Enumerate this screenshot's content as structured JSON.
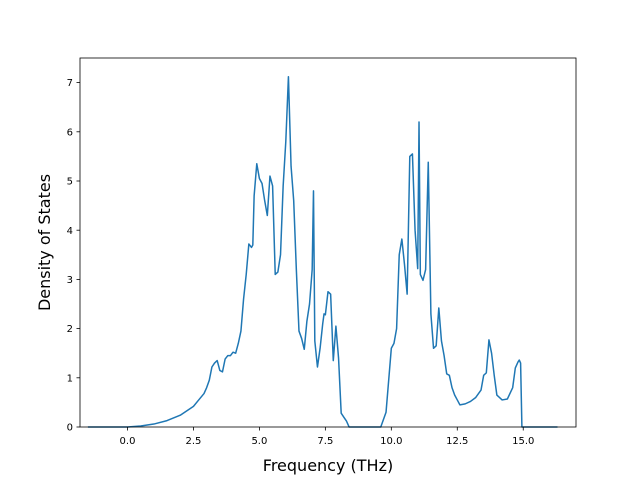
{
  "chart_data": {
    "type": "line",
    "title": "",
    "xlabel": "Frequency (THz)",
    "ylabel": "Density of States",
    "xlim": [
      -1.8,
      17.0
    ],
    "ylim": [
      0,
      7.5
    ],
    "xticks": [
      0.0,
      2.5,
      5.0,
      7.5,
      10.0,
      12.5,
      15.0
    ],
    "xtick_labels": [
      "0.0",
      "2.5",
      "5.0",
      "7.5",
      "10.0",
      "12.5",
      "15.0"
    ],
    "yticks": [
      0,
      1,
      2,
      3,
      4,
      5,
      6,
      7
    ],
    "ytick_labels": [
      "0",
      "1",
      "2",
      "3",
      "4",
      "5",
      "6",
      "7"
    ],
    "grid": false,
    "legend": "none",
    "series": [
      {
        "color": "#1f77b4",
        "x": [
          -1.5,
          -0.5,
          0.0,
          0.5,
          1.0,
          1.5,
          2.0,
          2.5,
          2.7,
          2.9,
          3.0,
          3.1,
          3.2,
          3.3,
          3.4,
          3.5,
          3.6,
          3.7,
          3.8,
          3.9,
          4.0,
          4.1,
          4.2,
          4.3,
          4.4,
          4.5,
          4.6,
          4.7,
          4.75,
          4.8,
          4.9,
          4.95,
          5.0,
          5.1,
          5.2,
          5.3,
          5.4,
          5.5,
          5.6,
          5.7,
          5.8,
          5.9,
          6.0,
          6.1,
          6.2,
          6.3,
          6.4,
          6.5,
          6.6,
          6.7,
          6.8,
          6.9,
          7.0,
          7.05,
          7.1,
          7.2,
          7.3,
          7.4,
          7.45,
          7.5,
          7.6,
          7.7,
          7.8,
          7.9,
          8.0,
          8.1,
          8.2,
          8.3,
          8.4,
          9.6,
          9.8,
          9.9,
          10.0,
          10.1,
          10.2,
          10.3,
          10.4,
          10.5,
          10.6,
          10.7,
          10.8,
          10.9,
          11.0,
          11.05,
          11.1,
          11.2,
          11.3,
          11.4,
          11.5,
          11.6,
          11.7,
          11.8,
          11.9,
          12.0,
          12.1,
          12.2,
          12.3,
          12.4,
          12.5,
          12.6,
          12.8,
          13.0,
          13.2,
          13.4,
          13.5,
          13.6,
          13.7,
          13.8,
          13.9,
          14.0,
          14.2,
          14.4,
          14.6,
          14.7,
          14.8,
          14.85,
          14.9,
          14.95,
          15.0,
          16.3
        ],
        "y": [
          0,
          0,
          0,
          0.02,
          0.06,
          0.13,
          0.24,
          0.42,
          0.55,
          0.68,
          0.8,
          0.95,
          1.22,
          1.3,
          1.35,
          1.15,
          1.12,
          1.38,
          1.45,
          1.45,
          1.52,
          1.5,
          1.7,
          1.95,
          2.6,
          3.1,
          3.72,
          3.65,
          3.7,
          4.7,
          5.35,
          5.2,
          5.05,
          4.95,
          4.6,
          4.3,
          5.1,
          4.9,
          3.1,
          3.15,
          3.5,
          4.9,
          5.8,
          7.12,
          5.3,
          4.6,
          3.2,
          1.95,
          1.8,
          1.58,
          2.15,
          2.5,
          3.2,
          4.8,
          1.75,
          1.22,
          1.6,
          2.1,
          2.3,
          2.28,
          2.75,
          2.7,
          1.35,
          2.05,
          1.4,
          0.28,
          0.2,
          0.12,
          0.0,
          0.0,
          0.3,
          0.95,
          1.6,
          1.7,
          2.0,
          3.5,
          3.82,
          3.3,
          2.7,
          5.5,
          5.55,
          4.0,
          3.22,
          6.2,
          3.1,
          2.98,
          3.2,
          5.38,
          2.3,
          1.6,
          1.65,
          2.42,
          1.75,
          1.45,
          1.08,
          1.05,
          0.8,
          0.65,
          0.55,
          0.45,
          0.47,
          0.52,
          0.6,
          0.75,
          1.05,
          1.1,
          1.77,
          1.5,
          1.05,
          0.65,
          0.55,
          0.57,
          0.8,
          1.2,
          1.32,
          1.36,
          1.3,
          0.0,
          0.0,
          0.0
        ]
      }
    ]
  }
}
